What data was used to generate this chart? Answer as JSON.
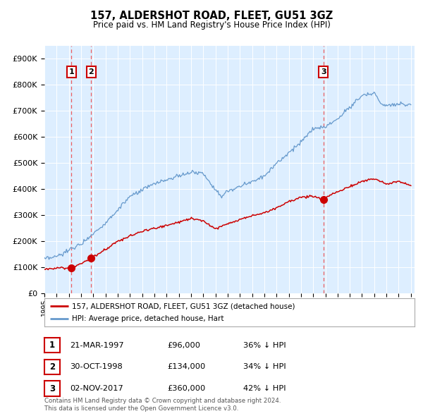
{
  "title": "157, ALDERSHOT ROAD, FLEET, GU51 3GZ",
  "subtitle": "Price paid vs. HM Land Registry's House Price Index (HPI)",
  "ylim": [
    0,
    950000
  ],
  "yticks": [
    0,
    100000,
    200000,
    300000,
    400000,
    500000,
    600000,
    700000,
    800000,
    900000
  ],
  "ytick_labels": [
    "£0",
    "£100K",
    "£200K",
    "£300K",
    "£400K",
    "£500K",
    "£600K",
    "£700K",
    "£800K",
    "£900K"
  ],
  "plot_bg_color": "#ddeeff",
  "red_line_color": "#cc0000",
  "blue_line_color": "#6699cc",
  "vline_color": "#ee4444",
  "sale1_year": 1997.22,
  "sale1_price": 96000,
  "sale1_label": "1",
  "sale1_date": "21-MAR-1997",
  "sale1_price_str": "£96,000",
  "sale1_hpi_pct": "36% ↓ HPI",
  "sale2_year": 1998.83,
  "sale2_price": 134000,
  "sale2_label": "2",
  "sale2_date": "30-OCT-1998",
  "sale2_price_str": "£134,000",
  "sale2_hpi_pct": "34% ↓ HPI",
  "sale3_year": 2017.84,
  "sale3_price": 360000,
  "sale3_label": "3",
  "sale3_date": "02-NOV-2017",
  "sale3_price_str": "£360,000",
  "sale3_hpi_pct": "42% ↓ HPI",
  "legend_entry1": "157, ALDERSHOT ROAD, FLEET, GU51 3GZ (detached house)",
  "legend_entry2": "HPI: Average price, detached house, Hart",
  "footer1": "Contains HM Land Registry data © Crown copyright and database right 2024.",
  "footer2": "This data is licensed under the Open Government Licence v3.0."
}
